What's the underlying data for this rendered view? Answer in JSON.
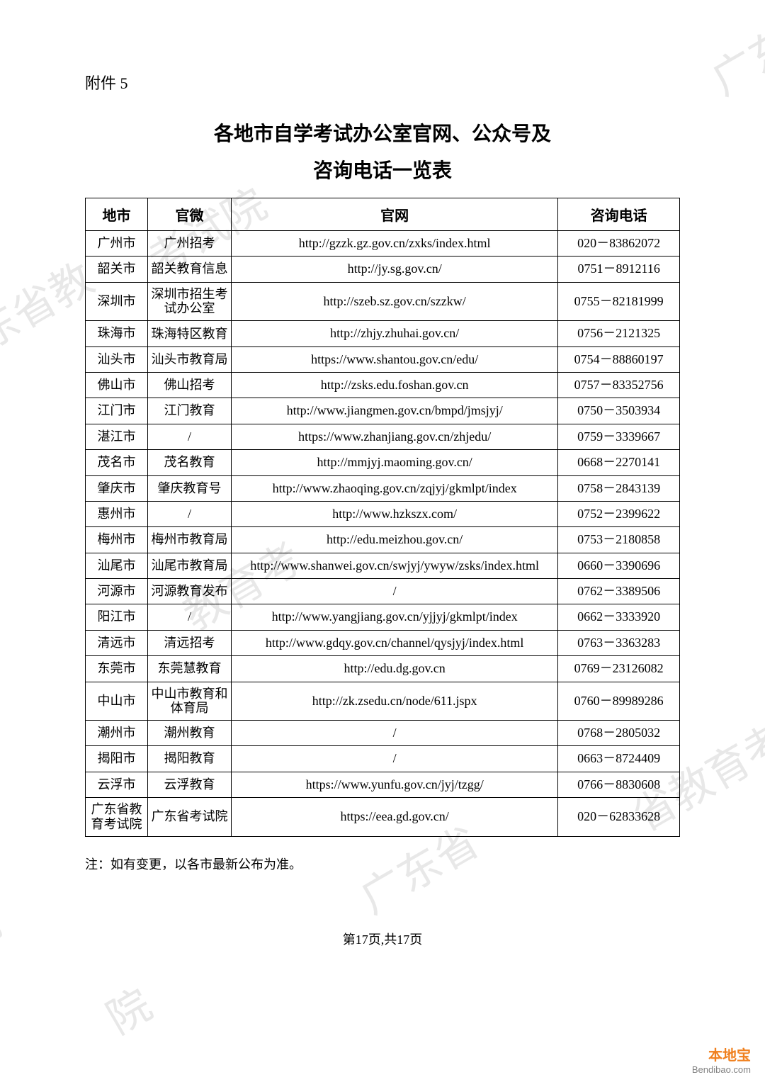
{
  "attachment_label": "附件 5",
  "title_line1": "各地市自学考试办公室官网、公众号及",
  "title_line2": "咨询电话一览表",
  "headers": {
    "city": "地市",
    "wechat": "官微",
    "url": "官网",
    "phone": "咨询电话"
  },
  "rows": [
    {
      "city": "广州市",
      "wechat": "广州招考",
      "url": "http://gzzk.gz.gov.cn/zxks/index.html",
      "phone": "020－83862072"
    },
    {
      "city": "韶关市",
      "wechat": "韶关教育信息",
      "url": "http://jy.sg.gov.cn/",
      "phone": "0751－8912116"
    },
    {
      "city": "深圳市",
      "wechat": "深圳市招生考试办公室",
      "url": "http://szeb.sz.gov.cn/szzkw/",
      "phone": "0755－82181999",
      "wechat_twoline": true
    },
    {
      "city": "珠海市",
      "wechat": "珠海特区教育",
      "url": "http://zhjy.zhuhai.gov.cn/",
      "phone": "0756－2121325",
      "wechat_twoline": true
    },
    {
      "city": "汕头市",
      "wechat": "汕头市教育局",
      "url": "https://www.shantou.gov.cn/edu/",
      "phone": "0754－88860197"
    },
    {
      "city": "佛山市",
      "wechat": "佛山招考",
      "url": "http://zsks.edu.foshan.gov.cn",
      "phone": "0757－83352756"
    },
    {
      "city": "江门市",
      "wechat": "江门教育",
      "url": "http://www.jiangmen.gov.cn/bmpd/jmsjyj/",
      "phone": "0750－3503934"
    },
    {
      "city": "湛江市",
      "wechat": "/",
      "url": "https://www.zhanjiang.gov.cn/zhjedu/",
      "phone": "0759－3339667"
    },
    {
      "city": "茂名市",
      "wechat": "茂名教育",
      "url": "http://mmjyj.maoming.gov.cn/",
      "phone": "0668－2270141"
    },
    {
      "city": "肇庆市",
      "wechat": "肇庆教育号",
      "url": "http://www.zhaoqing.gov.cn/zqjyj/gkmlpt/index",
      "phone": "0758－2843139"
    },
    {
      "city": "惠州市",
      "wechat": "/",
      "url": "http://www.hzkszx.com/",
      "phone": "0752－2399622"
    },
    {
      "city": "梅州市",
      "wechat": "梅州市教育局",
      "url": "http://edu.meizhou.gov.cn/",
      "phone": "0753－2180858"
    },
    {
      "city": "汕尾市",
      "wechat": "汕尾市教育局",
      "url": "http://www.shanwei.gov.cn/swjyj/ywyw/zsks/index.html",
      "phone": "0660－3390696"
    },
    {
      "city": "河源市",
      "wechat": "河源教育发布",
      "url": "/",
      "phone": "0762－3389506"
    },
    {
      "city": "阳江市",
      "wechat": "/",
      "url": "http://www.yangjiang.gov.cn/yjjyj/gkmlpt/index",
      "phone": "0662－3333920"
    },
    {
      "city": "清远市",
      "wechat": "清远招考",
      "url": "http://www.gdqy.gov.cn/channel/qysjyj/index.html",
      "phone": "0763－3363283"
    },
    {
      "city": "东莞市",
      "wechat": "东莞慧教育",
      "url": "http://edu.dg.gov.cn",
      "phone": "0769－23126082"
    },
    {
      "city": "中山市",
      "wechat": "中山市教育和体育局",
      "url": "http://zk.zsedu.cn/node/611.jspx",
      "phone": "0760－89989286",
      "wechat_twoline": true
    },
    {
      "city": "潮州市",
      "wechat": "潮州教育",
      "url": "/",
      "phone": "0768－2805032"
    },
    {
      "city": "揭阳市",
      "wechat": "揭阳教育",
      "url": "/",
      "phone": "0663－8724409"
    },
    {
      "city": "云浮市",
      "wechat": "云浮教育",
      "url": "https://www.yunfu.gov.cn/jyj/tzgg/",
      "phone": "0766－8830608"
    },
    {
      "city": "广东省教育考试院",
      "wechat": "广东省考试院",
      "url": "https://eea.gd.gov.cn/",
      "phone": "020－62833628",
      "city_twoline": true
    }
  ],
  "footnote": "注：如有变更，以各市最新公布为准。",
  "page_number": "第17页,共17页",
  "logo_text": "本地宝",
  "logo_url": "Bendibao.com",
  "watermark_text": "广东省教育考试院"
}
